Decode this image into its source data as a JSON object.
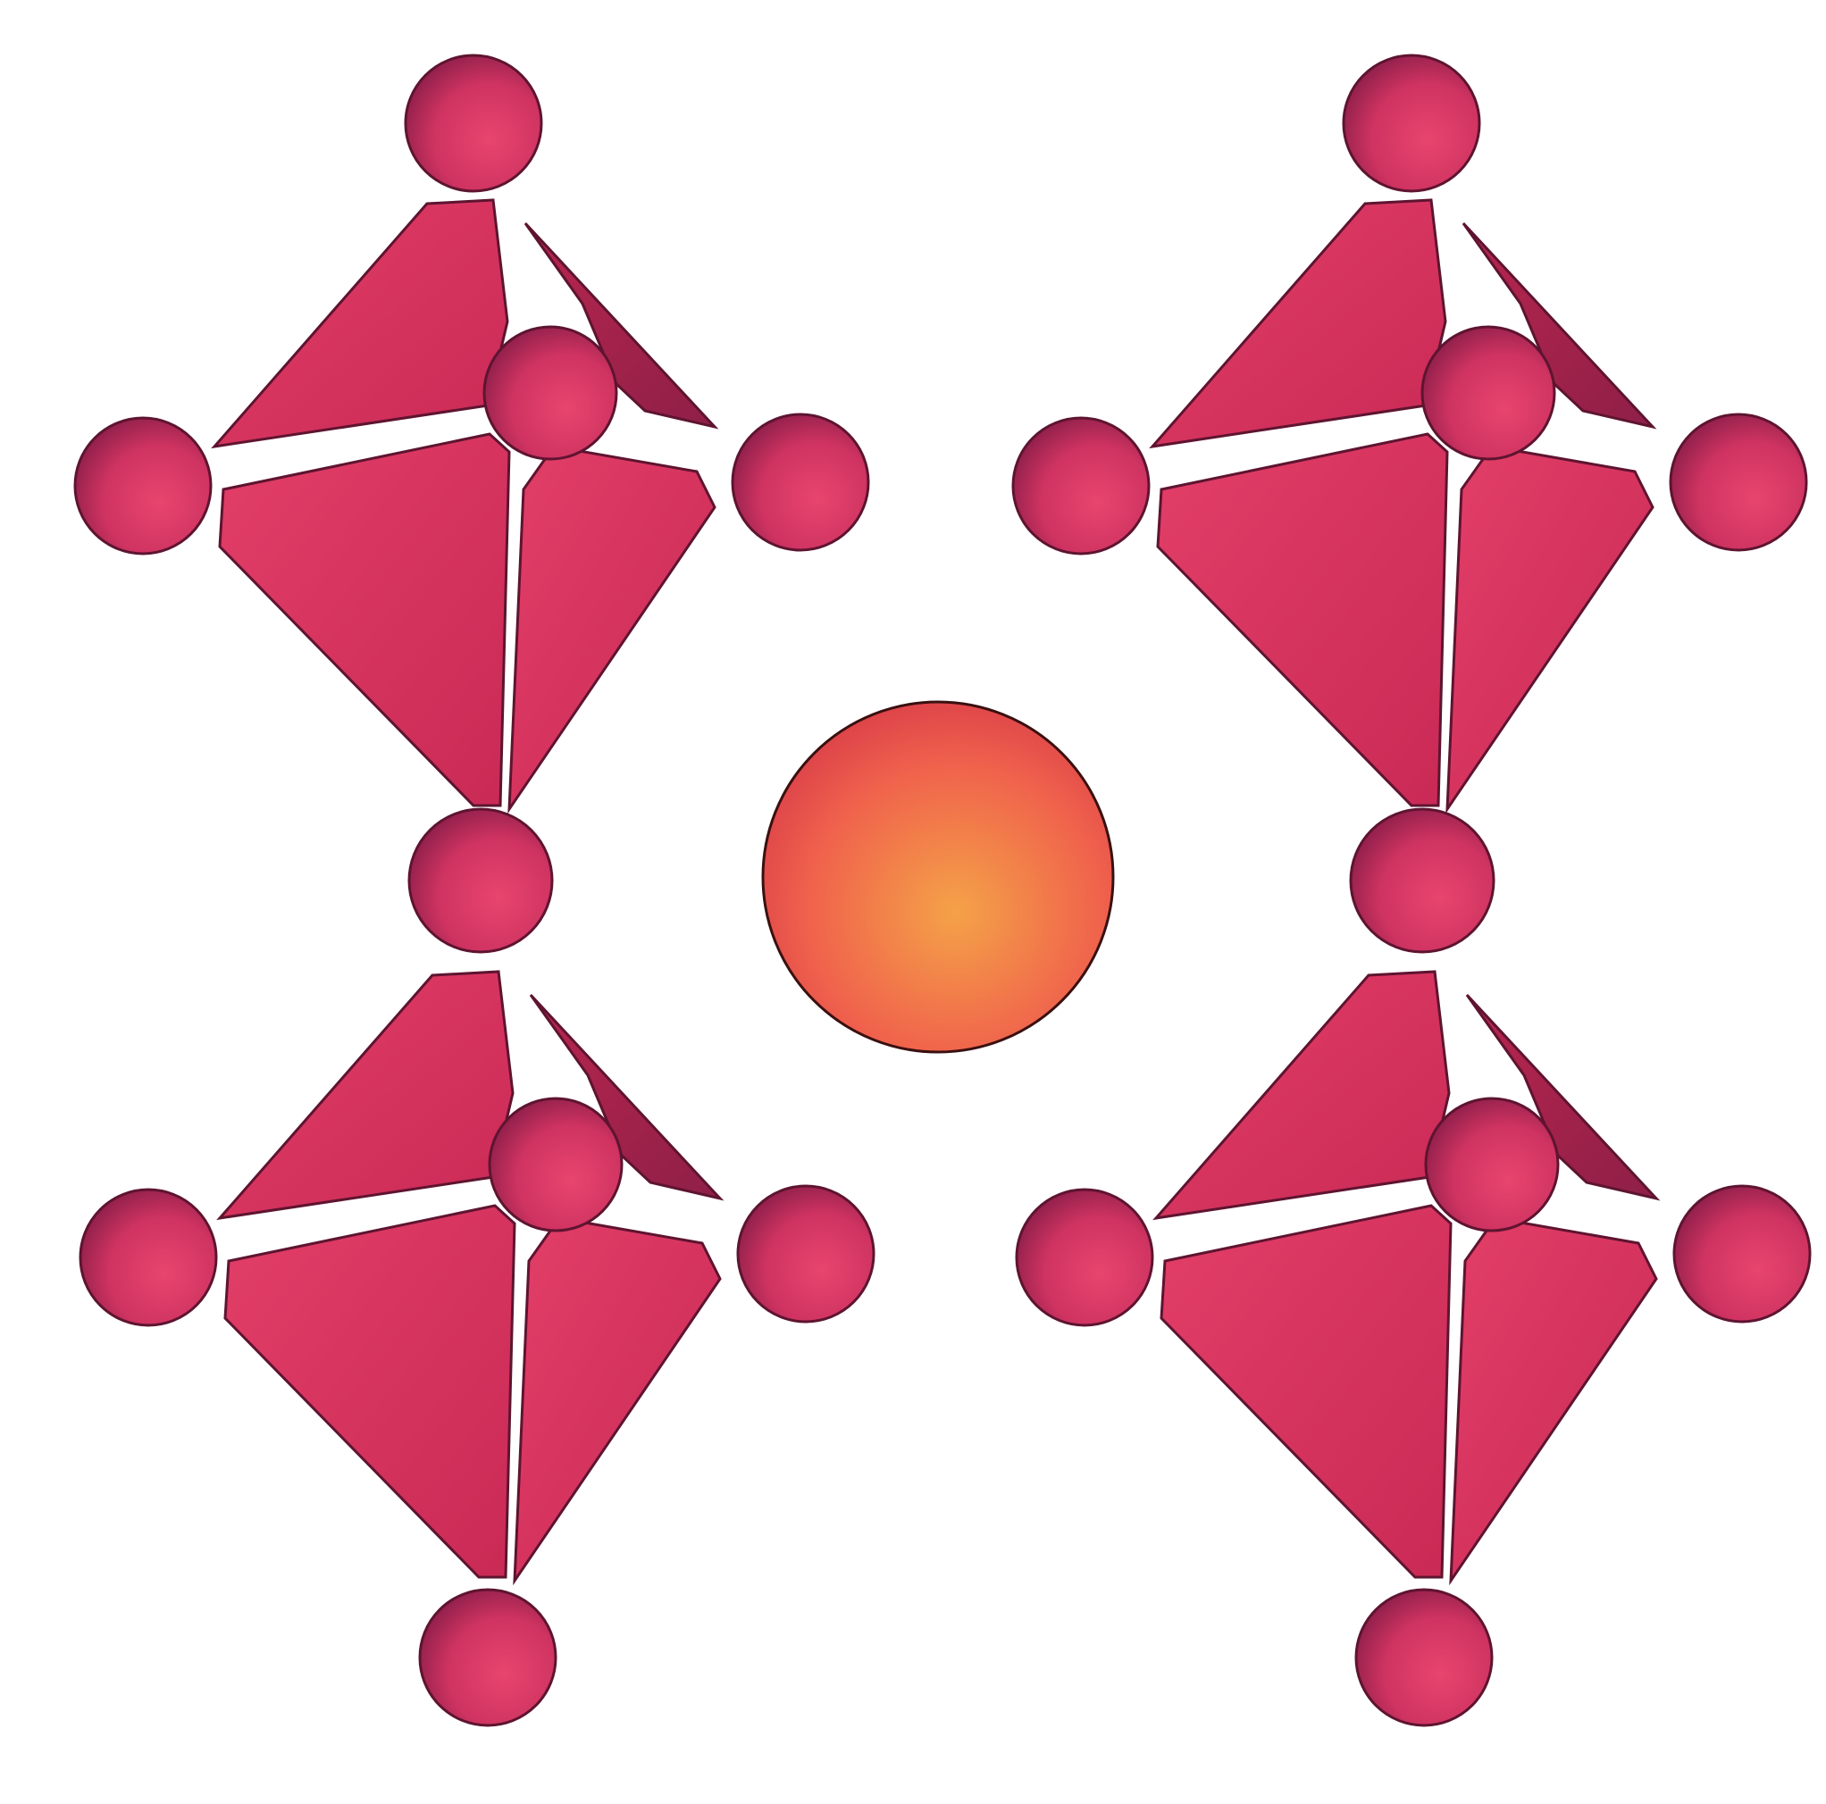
{
  "diagram": {
    "kind": "perovskite-octahedra",
    "octahedra_count": 4,
    "octahedra": [
      {
        "name": "top-left"
      },
      {
        "name": "bottom-left"
      },
      {
        "name": "top-right"
      },
      {
        "name": "bottom-right"
      }
    ],
    "central_cation": {
      "name": "A-site cation"
    },
    "colors": {
      "face_light": "#e23e68",
      "face_mid": "#c92a55",
      "face_shadow": "#8e1f47",
      "edge": "#5e1430",
      "sphere_light": "#e8456e",
      "sphere_dark": "#7e1a44",
      "cation_light": "#f4a248",
      "cation_mid": "#f0624c",
      "cation_dark": "#d53648",
      "background": "#ffffff"
    }
  }
}
